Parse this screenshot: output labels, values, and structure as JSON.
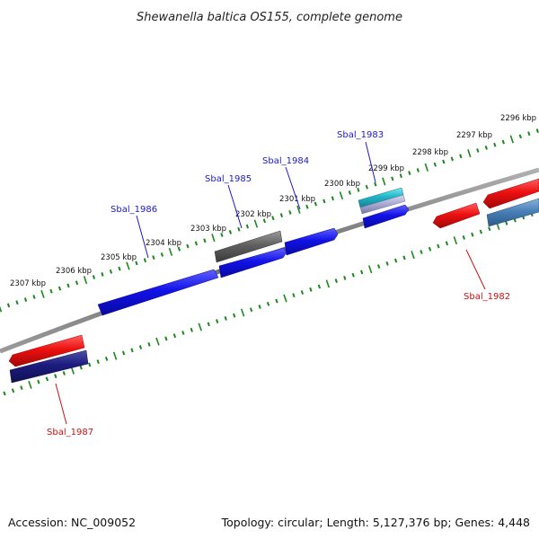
{
  "title": "Shewanella baltica OS155, complete genome",
  "footer": {
    "accession": "Accession: NC_009052",
    "summary": "Topology: circular; Length: 5,127,376 bp; Genes: 4,448"
  },
  "tick_labels": [
    "2296 kbp",
    "2297 kbp",
    "2298 kbp",
    "2299 kbp",
    "2300 kbp",
    "2301 kbp",
    "2302 kbp",
    "2303 kbp",
    "2304 kbp",
    "2305 kbp",
    "2306 kbp",
    "2307 kbp"
  ],
  "gene_labels": [
    {
      "name": "Sbal_1983",
      "strand": "forward"
    },
    {
      "name": "Sbal_1984",
      "strand": "forward"
    },
    {
      "name": "Sbal_1985",
      "strand": "forward"
    },
    {
      "name": "Sbal_1986",
      "strand": "forward"
    },
    {
      "name": "Sbal_1982",
      "strand": "reverse"
    },
    {
      "name": "Sbal_1987",
      "strand": "reverse"
    }
  ],
  "colors": {
    "backbone": "#7a7a7a",
    "scale_ticks": "#1a8a1a",
    "cds": "#1010e0",
    "trna": "#20b8c8",
    "other": "#666666",
    "reverse_red": "#e81010",
    "reverse_navy": "#1c1c80",
    "reverse_steel": "#4a80b8",
    "forward_label": "#1a1acc",
    "reverse_label": "#cc1111"
  }
}
